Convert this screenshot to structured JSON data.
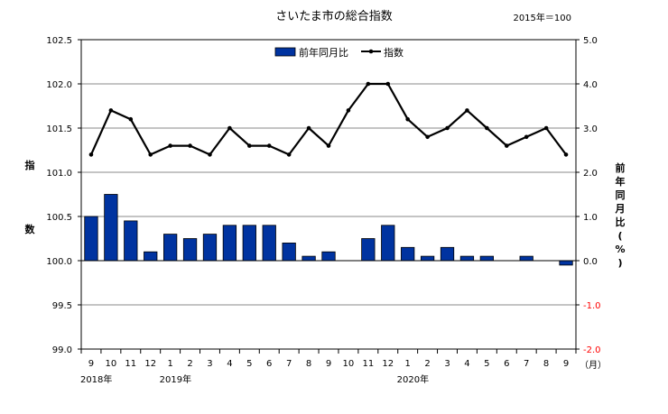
{
  "chart_data": {
    "type": "bar+line",
    "title": "さいたま市の総合指数",
    "base_note": "2015年＝100",
    "months": [
      "9",
      "10",
      "11",
      "12",
      "1",
      "2",
      "3",
      "4",
      "5",
      "6",
      "7",
      "8",
      "9",
      "10",
      "11",
      "12",
      "1",
      "2",
      "3",
      "4",
      "5",
      "6",
      "7",
      "8",
      "9"
    ],
    "month_unit": "（月）",
    "year_labels": [
      {
        "label": "2018年",
        "index": 0
      },
      {
        "label": "2019年",
        "index": 4
      },
      {
        "label": "2020年",
        "index": 16
      }
    ],
    "left_axis": {
      "label": "指数",
      "ylim": [
        99.0,
        102.5
      ],
      "ticks": [
        "99.0",
        "99.5",
        "100.0",
        "100.5",
        "101.0",
        "101.5",
        "102.0",
        "102.5"
      ]
    },
    "right_axis": {
      "label": "前年同月比(%)",
      "ylim": [
        -2.0,
        5.0
      ],
      "ticks": [
        "-2.0",
        "-1.0",
        "0.0",
        "1.0",
        "2.0",
        "3.0",
        "4.0",
        "5.0"
      ],
      "negative_color": "#ff0000"
    },
    "legend": {
      "position": "top-center"
    },
    "series": [
      {
        "name": "前年同月比",
        "kind": "bar",
        "axis": "right",
        "color": "#0033a0",
        "values": [
          1.0,
          1.5,
          0.9,
          0.2,
          0.6,
          0.5,
          0.6,
          0.8,
          0.8,
          0.8,
          0.4,
          0.1,
          0.2,
          0.0,
          0.5,
          0.8,
          0.3,
          0.1,
          0.3,
          0.1,
          0.1,
          0.0,
          0.1,
          0.0,
          -0.1
        ]
      },
      {
        "name": "指数",
        "kind": "line",
        "axis": "left",
        "color": "#000000",
        "values": [
          101.2,
          101.7,
          101.6,
          101.2,
          101.3,
          101.3,
          101.2,
          101.5,
          101.3,
          101.3,
          101.2,
          101.5,
          101.3,
          101.7,
          102.0,
          102.0,
          101.6,
          101.4,
          101.5,
          101.7,
          101.5,
          101.3,
          101.4,
          101.5,
          101.2
        ]
      }
    ]
  }
}
